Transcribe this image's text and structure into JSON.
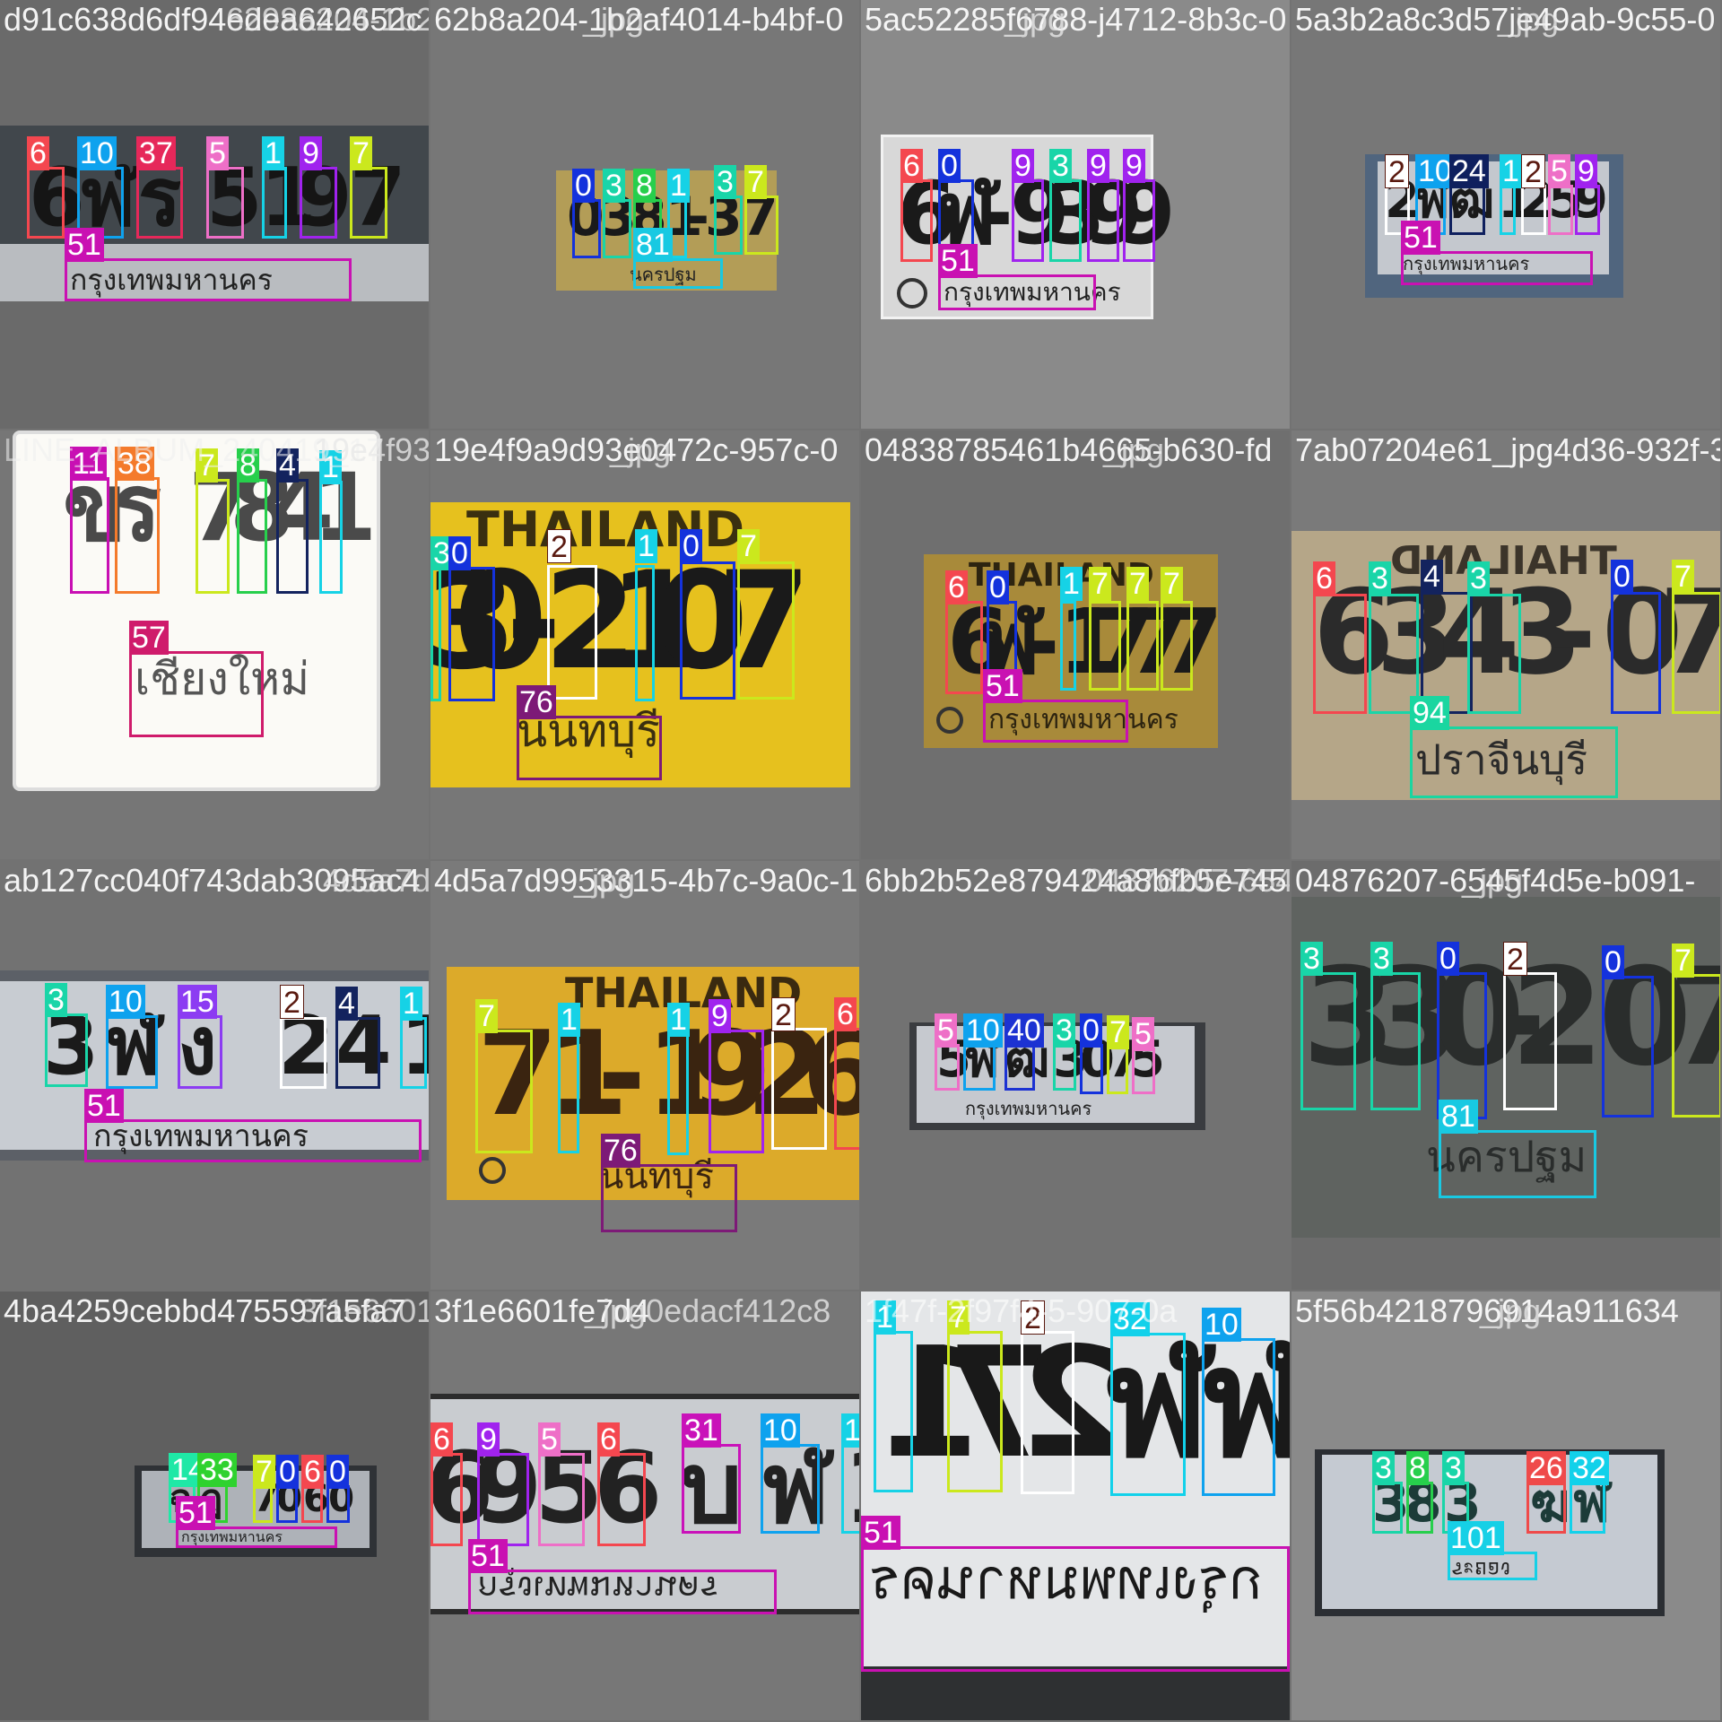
{
  "grid": {
    "cols": 4,
    "rows": 4
  },
  "colors": {
    "0": "#1432dc",
    "1": "#16d2e6",
    "2": "#ffffff",
    "3": "#19d5a8",
    "4": "#13235e",
    "5": "#ee6fc7",
    "6": "#f4474f",
    "7": "#cbe81d",
    "8": "#27cf4c",
    "9": "#a023ee",
    "10": "#0ea2ee",
    "11": "#c80fb3",
    "14": "#1fe8a6",
    "15": "#8c3cf2",
    "24": "#0f205e",
    "26": "#ef4a4a",
    "31": "#c912b9",
    "32": "#12d1ea",
    "33": "#2fd22f",
    "37": "#e6285a",
    "38": "#f47a2b",
    "40": "#1c32d2",
    "51": "#c911b2",
    "57": "#cf1b6b",
    "76": "#7d1a77",
    "81": "#18c9e2",
    "94": "#1ad6a0",
    "101": "#16d0e6"
  },
  "tiles": [
    {
      "name": "d91c638d6df94edea642652c",
      "overlay": "6298a204-1b2af4014-b4bf-0",
      "plate_text": [
        "6",
        "ฬ",
        "ร",
        "5",
        "1",
        "9",
        "7"
      ],
      "province_text": "กรุงเทพมหานคร",
      "labels": [
        "6",
        "10",
        "37",
        "5",
        "1",
        "9",
        "7",
        "51"
      ]
    },
    {
      "name": "62b8a204-1b2af4014-b4bf-0",
      "overlay": "_jpg",
      "plate_text": [
        "0",
        "3",
        "8",
        "1",
        "-",
        "3",
        "7"
      ],
      "province_text": "นครปฐม",
      "labels": [
        "0",
        "3",
        "8",
        "1",
        "3",
        "7",
        "81"
      ]
    },
    {
      "name": "5ac52285f6788-j4712-8b3c-0",
      "overlay": "_jpg",
      "plate_text": [
        "6",
        "ฬ",
        "-",
        "9",
        "3",
        "9",
        "9"
      ],
      "province_text": "กรุงเทพมหานคร",
      "labels": [
        "6",
        "0",
        "9",
        "3",
        "9",
        "9",
        "51"
      ]
    },
    {
      "name": "5a3b2a8c3d57je49ab-9c55-0",
      "overlay": "_jpg",
      "plate_text": [
        "2",
        "ฬ",
        "ฒ",
        "1",
        "2",
        "5",
        "9"
      ],
      "province_text": "กรุงเทพมหานคร",
      "labels": [
        "2",
        "10",
        "24",
        "1",
        "2",
        "5",
        "9",
        "51"
      ]
    },
    {
      "name": "LINE_ALBUM_240419_17",
      "overlay": "19e4f939193b0472c-957c-0",
      "plate_text": [
        "ข",
        "ร",
        "7",
        "8",
        "4",
        "1"
      ],
      "province_text": "เชียงใหม่",
      "labels": [
        "11",
        "38",
        "7",
        "8",
        "4",
        "1",
        "57"
      ]
    },
    {
      "name": "19e4f9a9d93e0472c-957c-0",
      "overlay": "_jpg",
      "header_text": "THAILAND",
      "plate_text": [
        "3",
        "0",
        "-",
        "2",
        "1",
        "0",
        "7"
      ],
      "province_text": "นนทบุรี",
      "labels": [
        "3",
        "0",
        "2",
        "1",
        "0",
        "7",
        "76"
      ]
    },
    {
      "name": "04838785461b4665-b630-fd",
      "overlay": "_jpg",
      "header_text": "THAILAND",
      "plate_text": [
        "6",
        "ฬ",
        "-",
        "1",
        "7",
        "7",
        "7"
      ],
      "province_text": "กรุงเทพมหานคร",
      "labels": [
        "6",
        "0",
        "1",
        "7",
        "7",
        "7",
        "51"
      ]
    },
    {
      "name": "7ab07204e61_jpg4d36-932f-3",
      "overlay": "",
      "header_text": "THAILAND",
      "plate_text": [
        "6",
        "3",
        "4",
        "3",
        "-",
        "0",
        "7"
      ],
      "province_text": "ปราจีนบุรี",
      "labels": [
        "6",
        "3",
        "4",
        "3",
        "0",
        "7",
        "94"
      ]
    },
    {
      "name": "ab127cc040f743dab3095ac4",
      "overlay": "4d5a7d9953315-4b7c-9a0c-1",
      "plate_text": [
        "3",
        "ฬ",
        "ง",
        "2",
        "4",
        "1"
      ],
      "province_text": "กรุงเทพมหานคร",
      "labels": [
        "3",
        "10",
        "15",
        "2",
        "4",
        "1",
        "51"
      ]
    },
    {
      "name": "4d5a7d9953315-4b7c-9a0c-1",
      "overlay": "_jpg",
      "header_text": "THAILAND",
      "plate_text": [
        "7",
        "1",
        "-",
        "1",
        "9",
        "2",
        "6"
      ],
      "province_text": "นนทบุรี",
      "labels": [
        "7",
        "1",
        "1",
        "9",
        "2",
        "6",
        "76"
      ]
    },
    {
      "name": "6bb2b52e879424a8bfb5e745",
      "overlay": "04876207-6545f4d5e-b091-",
      "plate_text": [
        "5",
        "ฬ",
        "ฒ",
        "3",
        "0",
        "7",
        "5"
      ],
      "province_text": "กรุงเทพมหานคร",
      "labels": [
        "5",
        "10",
        "40",
        "3",
        "0",
        "7",
        "5"
      ]
    },
    {
      "name": "04876207-6545f4d5e-b091-",
      "overlay": "_jpg",
      "plate_text": [
        "3",
        "3",
        "0",
        "-",
        "2",
        "0",
        "7"
      ],
      "province_text": "นครปฐม",
      "labels": [
        "3",
        "3",
        "0",
        "2",
        "0",
        "7",
        "81"
      ]
    },
    {
      "name": "4ba4259cebbd475597a5fa7",
      "overlay": "3f1e6601fe7d4",
      "plate_text": [
        "ฉ",
        "ฎ",
        "7",
        "0",
        "6",
        "0"
      ],
      "province_text": "กรุงเทพมหานคร",
      "labels": [
        "14",
        "33",
        "7",
        "0",
        "6",
        "0",
        "51"
      ]
    },
    {
      "name": "3f1e6601fe7d4",
      "overlay": "_jpg0edacf412c8",
      "plate_text": [
        "6",
        "9",
        "5",
        "6",
        "บ",
        "ฬ",
        "1"
      ],
      "province_text": "กรุงเทพมหานคร",
      "labels": [
        "6",
        "9",
        "5",
        "6",
        "31",
        "10",
        "1",
        "51"
      ]
    },
    {
      "name": "1f47f-2f97f4-5-907-0a",
      "overlay": "",
      "plate_text": [
        "1",
        "7",
        "2",
        "ฬ",
        "ฬ"
      ],
      "province_text": "กรุงเทพมหานคร",
      "labels": [
        "1",
        "7",
        "2",
        "32",
        "10",
        "51"
      ]
    },
    {
      "name": "5f56b4218796914a911634",
      "overlay": "_jpg",
      "plate_text": [
        "3",
        "8",
        "3",
        "ฆ",
        "ฬ"
      ],
      "province_text": "ระยอง",
      "labels": [
        "3",
        "8",
        "3",
        "26",
        "32",
        "101"
      ]
    }
  ]
}
